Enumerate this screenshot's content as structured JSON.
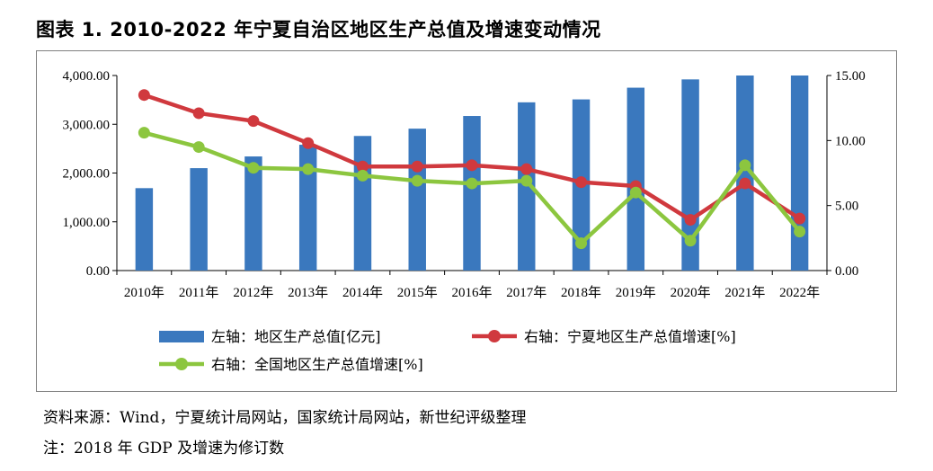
{
  "title": "图表 1. 2010-2022 年宁夏自治区地区生产总值及增速变动情况",
  "source": "资料来源：Wind，宁夏统计局网站，国家统计局网站，新世纪评级整理",
  "footnote": "注：2018 年 GDP 及增速为修订数",
  "chart_data": {
    "type": "bar",
    "categories": [
      "2010年",
      "2011年",
      "2012年",
      "2013年",
      "2014年",
      "2015年",
      "2016年",
      "2017年",
      "2018年",
      "2019年",
      "2020年",
      "2021年",
      "2022年"
    ],
    "left_axis": {
      "range": [
        0,
        4000
      ],
      "ticks": [
        0,
        1000,
        2000,
        3000,
        4000
      ],
      "tick_labels": [
        "0.00",
        "1,000.00",
        "2,000.00",
        "3,000.00",
        "4,000.00"
      ]
    },
    "right_axis": {
      "range": [
        0,
        15
      ],
      "ticks": [
        0,
        5,
        10,
        15
      ],
      "tick_labels": [
        "0.00",
        "5.00",
        "10.00",
        "15.00"
      ]
    },
    "series": [
      {
        "name": "左轴：地区生产总值[亿元]",
        "type": "bar",
        "axis": "left",
        "color": "#3a78be",
        "values": [
          1690,
          2100,
          2340,
          2580,
          2760,
          2910,
          3170,
          3450,
          3510,
          3750,
          3920,
          4000,
          4000
        ]
      },
      {
        "name": "右轴：宁夏地区生产总值增速[%]",
        "type": "line",
        "axis": "right",
        "color": "#d0393e",
        "values": [
          13.5,
          12.1,
          11.5,
          9.8,
          8.0,
          8.0,
          8.1,
          7.8,
          6.8,
          6.5,
          3.9,
          6.7,
          4.0
        ]
      },
      {
        "name": "右轴：全国地区生产总值增速[%]",
        "type": "line",
        "axis": "right",
        "color": "#8cc63f",
        "values": [
          10.6,
          9.5,
          7.9,
          7.8,
          7.3,
          6.9,
          6.7,
          6.9,
          2.1,
          6.0,
          2.3,
          8.1,
          3.0
        ]
      }
    ],
    "legend_position": "bottom"
  }
}
